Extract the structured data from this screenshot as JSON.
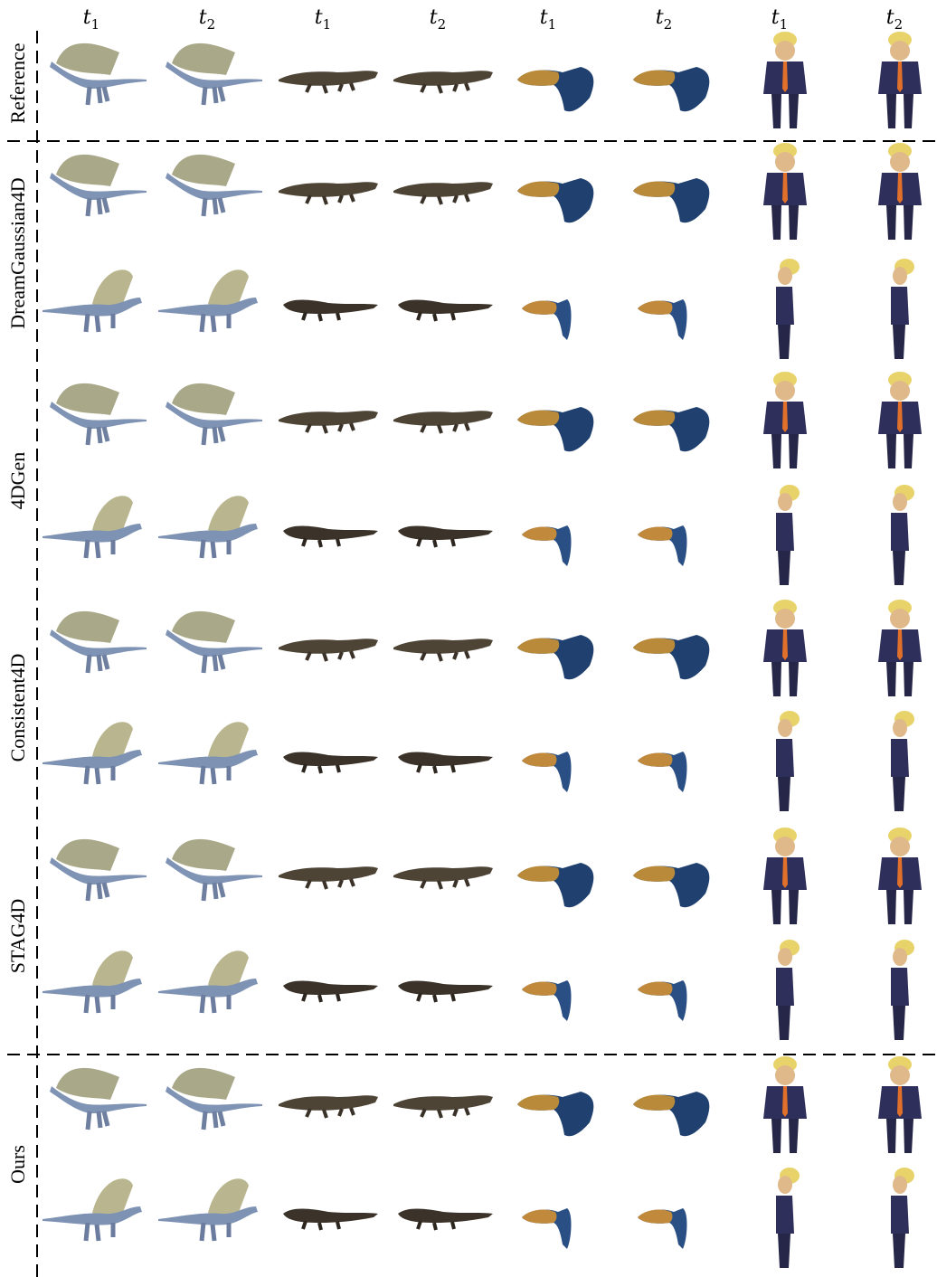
{
  "columns": [
    {
      "symbol": "t",
      "subscript": "1"
    },
    {
      "symbol": "t",
      "subscript": "2"
    },
    {
      "symbol": "t",
      "subscript": "1"
    },
    {
      "symbol": "t",
      "subscript": "2"
    },
    {
      "symbol": "t",
      "subscript": "1"
    },
    {
      "symbol": "t",
      "subscript": "2"
    },
    {
      "symbol": "t",
      "subscript": "1"
    },
    {
      "symbol": "t",
      "subscript": "2"
    }
  ],
  "rows": [
    {
      "label": "Reference"
    },
    {
      "label": "DreamGaussian4D"
    },
    {
      "label": "4DGen"
    },
    {
      "label": "Consistent4D"
    },
    {
      "label": "STAG4D"
    },
    {
      "label": "Ours"
    }
  ]
}
